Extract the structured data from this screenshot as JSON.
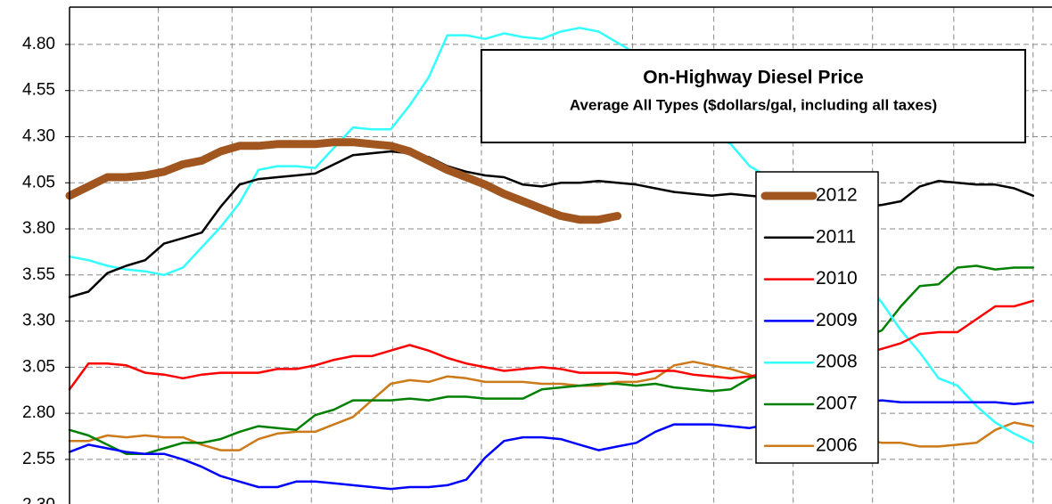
{
  "chart_data": {
    "type": "line",
    "title": "On-Highway Diesel Price",
    "subtitle": "Average All Types ($dollars/gal, including all taxes)",
    "x": [
      1,
      2,
      3,
      4,
      5,
      6,
      7,
      8,
      9,
      10,
      11,
      12,
      13,
      14,
      15,
      16,
      17,
      18,
      19,
      20,
      21,
      22,
      23,
      24,
      25,
      26,
      27,
      28,
      29,
      30,
      31,
      32,
      33,
      34,
      35,
      36,
      37,
      38,
      39,
      40,
      41,
      42,
      43,
      44,
      45,
      46,
      47,
      48,
      49,
      50,
      51,
      52
    ],
    "xlim": [
      1,
      53
    ],
    "xticks": [
      5.7,
      9.6,
      13.8,
      18.1,
      22.8,
      26.6,
      30.8,
      35.1,
      39.3,
      43.5,
      47.8,
      52
    ],
    "ylim": [
      2.3,
      5.0
    ],
    "yticks": [
      {
        "value": 2.3,
        "label": "2.30"
      },
      {
        "value": 2.55,
        "label": "2.55"
      },
      {
        "value": 2.8,
        "label": "2.80"
      },
      {
        "value": 3.05,
        "label": "3.05"
      },
      {
        "value": 3.3,
        "label": "3.30"
      },
      {
        "value": 3.55,
        "label": "3.55"
      },
      {
        "value": 3.8,
        "label": "3.80"
      },
      {
        "value": 4.05,
        "label": "4.05"
      },
      {
        "value": 4.3,
        "label": "4.30"
      },
      {
        "value": 4.55,
        "label": "4.55"
      },
      {
        "value": 4.8,
        "label": "4.80"
      }
    ],
    "grid": true,
    "legend_position": "right",
    "series": [
      {
        "name": "2012",
        "color": "#a0561e",
        "width": 9,
        "values": [
          3.98,
          4.03,
          4.08,
          4.08,
          4.09,
          4.11,
          4.15,
          4.17,
          4.22,
          4.25,
          4.25,
          4.26,
          4.26,
          4.26,
          4.27,
          4.27,
          4.26,
          4.25,
          4.22,
          4.17,
          4.12,
          4.08,
          4.04,
          3.99,
          3.95,
          3.91,
          3.87,
          3.85,
          3.85,
          3.87,
          null,
          null,
          null,
          null,
          null,
          null,
          null,
          null,
          null,
          null,
          null,
          null,
          null,
          null,
          null,
          null,
          null,
          null,
          null,
          null,
          null,
          null
        ]
      },
      {
        "name": "2011",
        "color": "#000000",
        "width": 2.5,
        "values": [
          3.43,
          3.46,
          3.56,
          3.6,
          3.63,
          3.72,
          3.75,
          3.78,
          3.92,
          4.04,
          4.07,
          4.08,
          4.09,
          4.1,
          4.15,
          4.2,
          4.21,
          4.22,
          4.21,
          4.19,
          4.14,
          4.11,
          4.09,
          4.08,
          4.04,
          4.03,
          4.05,
          4.05,
          4.06,
          4.05,
          4.04,
          4.02,
          4.0,
          3.99,
          3.98,
          3.99,
          3.98,
          3.97,
          3.96,
          3.95,
          3.94,
          3.93,
          3.92,
          3.93,
          3.95,
          4.03,
          4.06,
          4.05,
          4.04,
          4.04,
          4.02,
          3.98
        ]
      },
      {
        "name": "2010",
        "color": "#ff0000",
        "width": 2.5,
        "values": [
          2.93,
          3.07,
          3.07,
          3.06,
          3.02,
          3.01,
          2.99,
          3.01,
          3.02,
          3.02,
          3.02,
          3.04,
          3.04,
          3.06,
          3.09,
          3.11,
          3.11,
          3.14,
          3.17,
          3.14,
          3.1,
          3.07,
          3.05,
          3.03,
          3.04,
          3.05,
          3.04,
          3.02,
          3.02,
          3.02,
          3.01,
          3.03,
          3.03,
          3.01,
          3.0,
          2.99,
          3.0,
          3.02,
          3.04,
          3.06,
          3.08,
          3.1,
          3.12,
          3.15,
          3.18,
          3.23,
          3.24,
          3.24,
          3.31,
          3.38,
          3.38,
          3.41
        ]
      },
      {
        "name": "2009",
        "color": "#0000ff",
        "width": 2.5,
        "values": [
          2.59,
          2.63,
          2.61,
          2.59,
          2.58,
          2.58,
          2.55,
          2.51,
          2.46,
          2.43,
          2.4,
          2.4,
          2.43,
          2.43,
          2.42,
          2.41,
          2.4,
          2.39,
          2.4,
          2.4,
          2.41,
          2.44,
          2.56,
          2.65,
          2.67,
          2.67,
          2.66,
          2.63,
          2.6,
          2.62,
          2.64,
          2.7,
          2.74,
          2.74,
          2.74,
          2.73,
          2.72,
          2.74,
          2.77,
          2.8,
          2.83,
          2.85,
          2.86,
          2.87,
          2.86,
          2.86,
          2.86,
          2.86,
          2.86,
          2.86,
          2.85,
          2.86
        ]
      },
      {
        "name": "2008",
        "color": "#33ffff",
        "width": 2.5,
        "values": [
          3.65,
          3.63,
          3.6,
          3.58,
          3.57,
          3.55,
          3.59,
          3.7,
          3.81,
          3.94,
          4.12,
          4.14,
          4.14,
          4.13,
          4.24,
          4.35,
          4.34,
          4.34,
          4.47,
          4.62,
          4.85,
          4.85,
          4.83,
          4.86,
          4.84,
          4.83,
          4.87,
          4.89,
          4.87,
          4.81,
          4.75,
          4.55,
          4.38,
          4.34,
          4.31,
          4.26,
          4.14,
          4.08,
          4.0,
          3.9,
          3.78,
          3.65,
          3.52,
          3.4,
          3.25,
          3.13,
          2.99,
          2.95,
          2.84,
          2.75,
          2.69,
          2.64
        ]
      },
      {
        "name": "2007",
        "color": "#008000",
        "width": 2.5,
        "values": [
          2.71,
          2.68,
          2.63,
          2.58,
          2.58,
          2.61,
          2.64,
          2.64,
          2.66,
          2.7,
          2.73,
          2.72,
          2.71,
          2.79,
          2.82,
          2.87,
          2.87,
          2.87,
          2.88,
          2.87,
          2.89,
          2.89,
          2.88,
          2.88,
          2.88,
          2.93,
          2.94,
          2.95,
          2.96,
          2.96,
          2.95,
          2.96,
          2.94,
          2.93,
          2.92,
          2.93,
          2.99,
          3.02,
          3.06,
          3.1,
          3.14,
          3.18,
          3.21,
          3.25,
          3.38,
          3.49,
          3.5,
          3.59,
          3.6,
          3.58,
          3.59,
          3.59
        ]
      },
      {
        "name": "2006",
        "color": "#cc7a1a",
        "width": 2.5,
        "values": [
          2.65,
          2.65,
          2.68,
          2.67,
          2.68,
          2.67,
          2.67,
          2.63,
          2.6,
          2.6,
          2.66,
          2.69,
          2.7,
          2.7,
          2.74,
          2.78,
          2.87,
          2.96,
          2.98,
          2.97,
          3.0,
          2.99,
          2.97,
          2.97,
          2.97,
          2.96,
          2.96,
          2.95,
          2.95,
          2.97,
          2.97,
          2.99,
          3.06,
          3.08,
          3.06,
          3.04,
          3.01,
          2.95,
          2.88,
          2.8,
          2.74,
          2.69,
          2.66,
          2.64,
          2.64,
          2.62,
          2.62,
          2.63,
          2.64,
          2.71,
          2.75,
          2.73
        ]
      }
    ]
  }
}
